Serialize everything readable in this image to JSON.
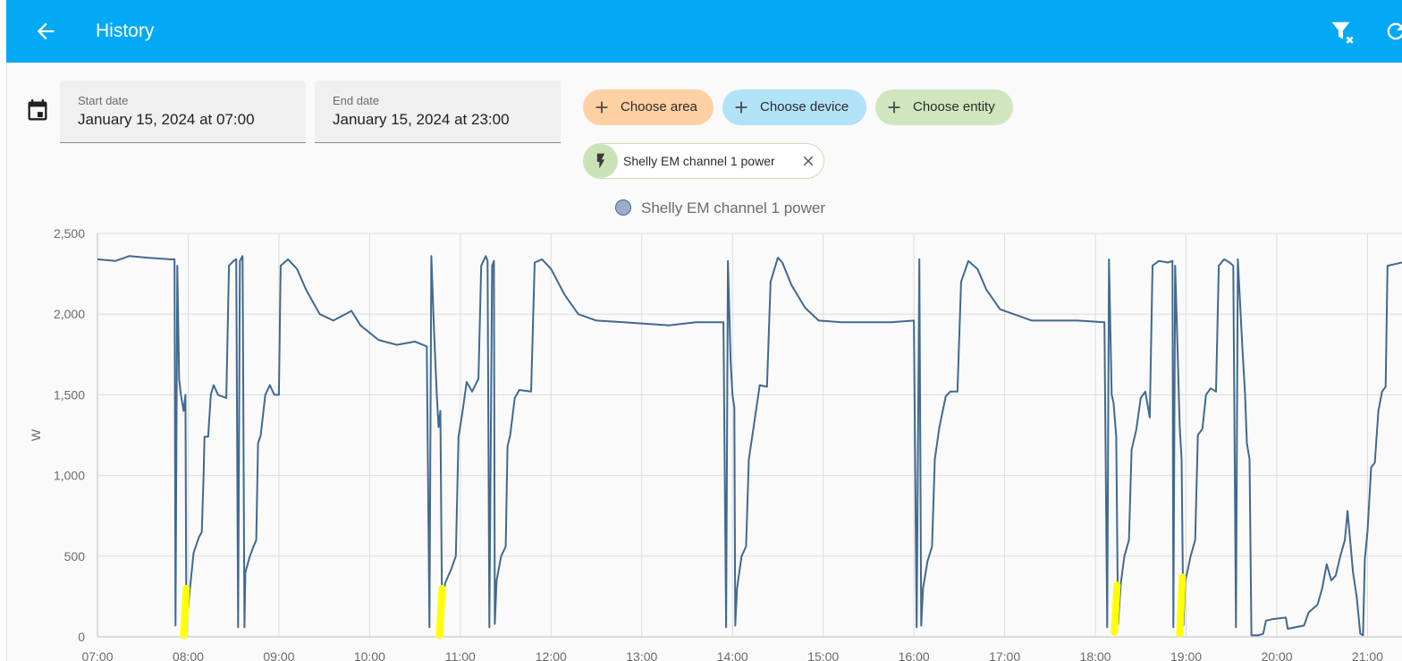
{
  "header": {
    "title": "History",
    "back_icon": "arrow-left-icon",
    "filter_icon": "filter-remove-icon",
    "refresh_icon": "refresh-icon",
    "color": "#03a9f4"
  },
  "date_picker": {
    "icon": "calendar-icon",
    "start": {
      "label": "Start date",
      "value": "January 15, 2024 at 07:00"
    },
    "end": {
      "label": "End date",
      "value": "January 15, 2024 at 23:00"
    }
  },
  "target_chips": [
    {
      "label": "Choose area",
      "icon": "plus-icon",
      "color": "#ffd0a3"
    },
    {
      "label": "Choose device",
      "icon": "plus-icon",
      "color": "#b2e2f8"
    },
    {
      "label": "Choose entity",
      "icon": "plus-icon",
      "color": "#cfe6bf"
    }
  ],
  "selected_entity": {
    "label": "Shelly EM channel 1 power",
    "icon": "flash-icon",
    "remove_icon": "close-icon"
  },
  "legend": {
    "label": "Shelly EM channel 1 power",
    "color": "#9aaec9"
  },
  "chart_data": {
    "type": "line",
    "ylabel": "W",
    "xlabel": "",
    "ylim": [
      0,
      2500
    ],
    "xlim_hours": [
      7.0,
      21.38
    ],
    "y_ticks": [
      "0",
      "500",
      "1,000",
      "1,500",
      "2,000",
      "2,500"
    ],
    "y_tick_values": [
      0,
      500,
      1000,
      1500,
      2000,
      2500
    ],
    "x_ticks": [
      "07:00",
      "08:00",
      "09:00",
      "10:00",
      "11:00",
      "12:00",
      "13:00",
      "14:00",
      "15:00",
      "16:00",
      "17:00",
      "18:00",
      "19:00",
      "20:00",
      "21:00"
    ],
    "grid": true,
    "legend_position": "top-center",
    "series": [
      {
        "name": "Shelly EM channel 1 power",
        "color": "#41698f",
        "points": [
          [
            7.0,
            2340
          ],
          [
            7.2,
            2330
          ],
          [
            7.35,
            2360
          ],
          [
            7.55,
            2350
          ],
          [
            7.8,
            2340
          ],
          [
            7.85,
            2340
          ],
          [
            7.86,
            70
          ],
          [
            7.88,
            2300
          ],
          [
            7.9,
            1600
          ],
          [
            7.92,
            1500
          ],
          [
            7.95,
            1400
          ],
          [
            7.97,
            1500
          ],
          [
            7.98,
            80
          ],
          [
            8.02,
            300
          ],
          [
            8.06,
            520
          ],
          [
            8.12,
            620
          ],
          [
            8.15,
            650
          ],
          [
            8.17,
            1000
          ],
          [
            8.18,
            1240
          ],
          [
            8.22,
            1240
          ],
          [
            8.25,
            1500
          ],
          [
            8.28,
            1560
          ],
          [
            8.33,
            1500
          ],
          [
            8.42,
            1480
          ],
          [
            8.45,
            2300
          ],
          [
            8.5,
            2330
          ],
          [
            8.53,
            2340
          ],
          [
            8.55,
            60
          ],
          [
            8.57,
            2330
          ],
          [
            8.6,
            2360
          ],
          [
            8.62,
            60
          ],
          [
            8.63,
            400
          ],
          [
            8.68,
            500
          ],
          [
            8.72,
            560
          ],
          [
            8.75,
            600
          ],
          [
            8.77,
            1200
          ],
          [
            8.8,
            1250
          ],
          [
            8.85,
            1500
          ],
          [
            8.9,
            1560
          ],
          [
            8.95,
            1500
          ],
          [
            9.0,
            1500
          ],
          [
            9.02,
            2300
          ],
          [
            9.1,
            2340
          ],
          [
            9.2,
            2280
          ],
          [
            9.3,
            2150
          ],
          [
            9.45,
            2000
          ],
          [
            9.6,
            1960
          ],
          [
            9.8,
            2020
          ],
          [
            9.9,
            1930
          ],
          [
            10.1,
            1840
          ],
          [
            10.3,
            1810
          ],
          [
            10.5,
            1830
          ],
          [
            10.63,
            1800
          ],
          [
            10.66,
            60
          ],
          [
            10.68,
            2360
          ],
          [
            10.71,
            1900
          ],
          [
            10.74,
            1500
          ],
          [
            10.76,
            1300
          ],
          [
            10.78,
            1400
          ],
          [
            10.8,
            80
          ],
          [
            10.83,
            330
          ],
          [
            10.9,
            420
          ],
          [
            10.95,
            500
          ],
          [
            10.98,
            1240
          ],
          [
            11.02,
            1380
          ],
          [
            11.07,
            1580
          ],
          [
            11.13,
            1520
          ],
          [
            11.2,
            1600
          ],
          [
            11.23,
            2300
          ],
          [
            11.28,
            2360
          ],
          [
            11.3,
            2330
          ],
          [
            11.32,
            60
          ],
          [
            11.35,
            2300
          ],
          [
            11.37,
            2330
          ],
          [
            11.38,
            80
          ],
          [
            11.4,
            350
          ],
          [
            11.45,
            500
          ],
          [
            11.5,
            560
          ],
          [
            11.52,
            1180
          ],
          [
            11.55,
            1250
          ],
          [
            11.6,
            1480
          ],
          [
            11.65,
            1530
          ],
          [
            11.78,
            1520
          ],
          [
            11.82,
            2320
          ],
          [
            11.9,
            2340
          ],
          [
            12.0,
            2280
          ],
          [
            12.15,
            2120
          ],
          [
            12.3,
            2000
          ],
          [
            12.5,
            1960
          ],
          [
            12.8,
            1950
          ],
          [
            13.3,
            1930
          ],
          [
            13.6,
            1950
          ],
          [
            13.9,
            1950
          ],
          [
            13.93,
            60
          ],
          [
            13.95,
            2330
          ],
          [
            13.98,
            1700
          ],
          [
            14.0,
            1500
          ],
          [
            14.02,
            1420
          ],
          [
            14.03,
            70
          ],
          [
            14.05,
            300
          ],
          [
            14.1,
            500
          ],
          [
            14.15,
            560
          ],
          [
            14.18,
            1100
          ],
          [
            14.22,
            1250
          ],
          [
            14.28,
            1480
          ],
          [
            14.3,
            1560
          ],
          [
            14.38,
            1550
          ],
          [
            14.42,
            2200
          ],
          [
            14.5,
            2350
          ],
          [
            14.55,
            2320
          ],
          [
            14.65,
            2180
          ],
          [
            14.8,
            2040
          ],
          [
            14.95,
            1960
          ],
          [
            15.2,
            1950
          ],
          [
            15.5,
            1950
          ],
          [
            15.75,
            1950
          ],
          [
            16.0,
            1960
          ],
          [
            16.03,
            60
          ],
          [
            16.06,
            2340
          ],
          [
            16.08,
            70
          ],
          [
            16.1,
            300
          ],
          [
            16.15,
            470
          ],
          [
            16.2,
            560
          ],
          [
            16.23,
            1100
          ],
          [
            16.28,
            1300
          ],
          [
            16.35,
            1490
          ],
          [
            16.4,
            1520
          ],
          [
            16.48,
            1520
          ],
          [
            16.52,
            2200
          ],
          [
            16.6,
            2330
          ],
          [
            16.7,
            2280
          ],
          [
            16.8,
            2150
          ],
          [
            16.95,
            2030
          ],
          [
            17.1,
            2000
          ],
          [
            17.3,
            1960
          ],
          [
            17.5,
            1960
          ],
          [
            17.8,
            1960
          ],
          [
            18.1,
            1950
          ],
          [
            18.13,
            60
          ],
          [
            18.15,
            2340
          ],
          [
            18.18,
            1500
          ],
          [
            18.2,
            1450
          ],
          [
            18.23,
            1240
          ],
          [
            18.25,
            80
          ],
          [
            18.28,
            330
          ],
          [
            18.32,
            500
          ],
          [
            18.37,
            600
          ],
          [
            18.4,
            1160
          ],
          [
            18.45,
            1280
          ],
          [
            18.5,
            1480
          ],
          [
            18.55,
            1520
          ],
          [
            18.6,
            1360
          ],
          [
            18.63,
            2300
          ],
          [
            18.7,
            2330
          ],
          [
            18.8,
            2320
          ],
          [
            18.85,
            2330
          ],
          [
            18.86,
            60
          ],
          [
            18.88,
            2300
          ],
          [
            18.91,
            1700
          ],
          [
            18.93,
            1300
          ],
          [
            18.95,
            1100
          ],
          [
            18.97,
            70
          ],
          [
            18.99,
            340
          ],
          [
            19.05,
            500
          ],
          [
            19.1,
            600
          ],
          [
            19.13,
            1250
          ],
          [
            19.18,
            1290
          ],
          [
            19.22,
            1500
          ],
          [
            19.27,
            1540
          ],
          [
            19.33,
            1520
          ],
          [
            19.36,
            2300
          ],
          [
            19.42,
            2340
          ],
          [
            19.48,
            2320
          ],
          [
            19.52,
            2300
          ],
          [
            19.55,
            60
          ],
          [
            19.57,
            2340
          ],
          [
            19.62,
            1800
          ],
          [
            19.65,
            1500
          ],
          [
            19.67,
            1200
          ],
          [
            19.7,
            1100
          ],
          [
            19.72,
            10
          ],
          [
            19.8,
            10
          ],
          [
            19.85,
            20
          ],
          [
            19.88,
            100
          ],
          [
            19.95,
            110
          ],
          [
            20.1,
            120
          ],
          [
            20.12,
            50
          ],
          [
            20.3,
            70
          ],
          [
            20.35,
            150
          ],
          [
            20.45,
            200
          ],
          [
            20.5,
            300
          ],
          [
            20.55,
            450
          ],
          [
            20.6,
            350
          ],
          [
            20.65,
            380
          ],
          [
            20.7,
            500
          ],
          [
            20.75,
            600
          ],
          [
            20.78,
            780
          ],
          [
            20.8,
            650
          ],
          [
            20.84,
            400
          ],
          [
            20.88,
            250
          ],
          [
            20.92,
            20
          ],
          [
            20.95,
            10
          ],
          [
            20.97,
            480
          ],
          [
            21.0,
            650
          ],
          [
            21.04,
            1050
          ],
          [
            21.08,
            1080
          ],
          [
            21.12,
            1400
          ],
          [
            21.16,
            1520
          ],
          [
            21.2,
            1550
          ],
          [
            21.22,
            2300
          ],
          [
            21.38,
            2320
          ]
        ]
      }
    ],
    "highlights": {
      "color": "#ffff00",
      "hours": [
        7.95,
        10.77,
        18.21,
        18.93
      ],
      "ranges": [
        [
          10,
          300
        ],
        [
          10,
          300
        ],
        [
          30,
          320
        ],
        [
          20,
          370
        ]
      ]
    }
  }
}
